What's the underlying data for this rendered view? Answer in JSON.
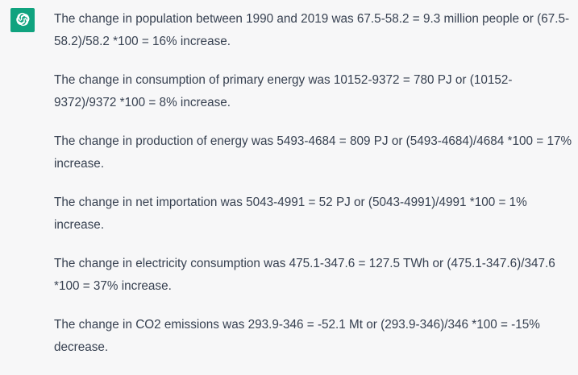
{
  "assistant": {
    "avatar_icon": "openai-logo-icon",
    "avatar_color": "#10a37f"
  },
  "paragraphs": [
    "The change in population between 1990 and 2019 was 67.5-58.2 = 9.3 million people or (67.5-58.2)/58.2 *100 = 16% increase.",
    "The change in consumption of primary energy was 10152-9372 = 780 PJ or (10152-9372)/9372 *100 = 8% increase.",
    "The change in production of energy was 5493-4684 = 809 PJ or (5493-4684)/4684 *100 = 17% increase.",
    "The change in net importation was 5043-4991 = 52 PJ or (5043-4991)/4991 *100 = 1% increase.",
    "The change in electricity consumption was 475.1-347.6 = 127.5 TWh or (475.1-347.6)/347.6 *100 = 37% increase.",
    "The change in CO2 emissions was 293.9-346 = -52.1 Mt or (293.9-346)/346 *100 = -15% decrease."
  ]
}
